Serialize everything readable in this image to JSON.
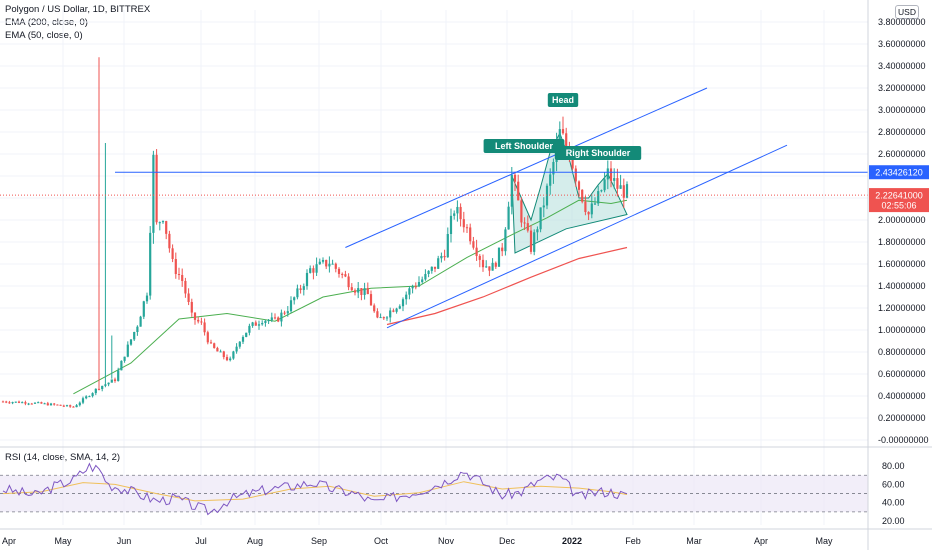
{
  "header": {
    "symbol_line": "Polygon / US Dollar, 1D, BITTREX",
    "ema200_line": "EMA (200, close, 0)",
    "ema50_line": "EMA (50, close, 0)",
    "currency": "USD"
  },
  "rsi_legend": "RSI (14, close, SMA, 14, 2)",
  "colors": {
    "up": "#26a69a",
    "down": "#ef5350",
    "ema50": "#4caf50",
    "ema200": "#ef5350",
    "channel": "#2962ff",
    "resistance": "#2962ff",
    "pattern_fill": "#b2dfdb",
    "pattern_badge": "#138a78",
    "rsi": "#7e57c2",
    "rsi_ma": "#f0c05a",
    "rsi_band": "#ede7f6",
    "price_badge": "#ef5350",
    "resistance_badge": "#2962ff"
  },
  "chart_data": {
    "type": "candlestick",
    "title": "Polygon / US Dollar, 1D, BITTREX",
    "x_axis_labels": [
      "Apr",
      "May",
      "Jun",
      "Jul",
      "Aug",
      "Sep",
      "Oct",
      "Nov",
      "Dec",
      "2022",
      "Feb",
      "Mar",
      "Apr",
      "May"
    ],
    "y_axis_labels": [
      "3.80000000",
      "3.60000000",
      "3.40000000",
      "3.20000000",
      "3.00000000",
      "2.80000000",
      "2.60000000",
      "2.40000000",
      "2.20000000",
      "2.00000000",
      "1.80000000",
      "1.60000000",
      "1.40000000",
      "1.20000000",
      "1.00000000",
      "0.80000000",
      "0.60000000",
      "0.40000000",
      "0.20000000",
      "-0.00000000"
    ],
    "ylim": [
      0,
      3.8
    ],
    "last_price": "2.22641000",
    "countdown": "02:55:06",
    "resistance_level": "2.43426120",
    "resistance_value": 2.43426,
    "pattern_labels": [
      "Left Shoulder",
      "Head",
      "Right Shoulder"
    ],
    "price_path": [
      [
        0,
        0.35
      ],
      [
        8,
        0.34
      ],
      [
        16,
        0.32
      ],
      [
        22,
        0.3
      ],
      [
        30,
        0.48
      ],
      [
        35,
        0.55
      ],
      [
        38,
        0.78
      ],
      [
        42,
        1.05
      ],
      [
        45,
        1.35
      ],
      [
        47,
        2.55
      ],
      [
        48,
        1.95
      ],
      [
        50,
        2.05
      ],
      [
        53,
        1.6
      ],
      [
        56,
        1.45
      ],
      [
        59,
        1.12
      ],
      [
        62,
        1.05
      ],
      [
        65,
        0.85
      ],
      [
        68,
        0.78
      ],
      [
        71,
        0.72
      ],
      [
        74,
        0.92
      ],
      [
        77,
        1.02
      ],
      [
        81,
        1.1
      ],
      [
        85,
        1.08
      ],
      [
        89,
        1.2
      ],
      [
        93,
        1.38
      ],
      [
        96,
        1.55
      ],
      [
        99,
        1.58
      ],
      [
        102,
        1.62
      ],
      [
        106,
        1.5
      ],
      [
        110,
        1.38
      ],
      [
        114,
        1.32
      ],
      [
        117,
        1.08
      ],
      [
        120,
        1.15
      ],
      [
        124,
        1.25
      ],
      [
        128,
        1.4
      ],
      [
        132,
        1.48
      ],
      [
        135,
        1.58
      ],
      [
        138,
        1.72
      ],
      [
        141,
        2.1
      ],
      [
        144,
        1.98
      ],
      [
        147,
        1.8
      ],
      [
        150,
        1.6
      ],
      [
        153,
        1.57
      ],
      [
        156,
        1.75
      ],
      [
        159,
        2.4
      ],
      [
        162,
        2.03
      ],
      [
        165,
        1.75
      ],
      [
        168,
        2.05
      ],
      [
        171,
        2.38
      ],
      [
        174,
        2.79
      ],
      [
        177,
        2.62
      ],
      [
        180,
        2.3
      ],
      [
        183,
        2.05
      ],
      [
        186,
        2.2
      ],
      [
        189,
        2.42
      ],
      [
        192,
        2.3
      ],
      [
        195,
        2.25
      ]
    ],
    "ema50_path": [
      [
        22,
        0.42
      ],
      [
        40,
        0.7
      ],
      [
        55,
        1.1
      ],
      [
        70,
        1.15
      ],
      [
        85,
        1.08
      ],
      [
        100,
        1.3
      ],
      [
        115,
        1.38
      ],
      [
        130,
        1.4
      ],
      [
        145,
        1.66
      ],
      [
        160,
        1.88
      ],
      [
        170,
        2.02
      ],
      [
        180,
        2.18
      ],
      [
        190,
        2.15
      ],
      [
        195,
        2.18
      ]
    ],
    "ema200_path": [
      [
        120,
        1.05
      ],
      [
        135,
        1.15
      ],
      [
        150,
        1.3
      ],
      [
        165,
        1.48
      ],
      [
        180,
        1.65
      ],
      [
        195,
        1.75
      ]
    ],
    "head_shoulders_polygon": [
      [
        159,
        2.4
      ],
      [
        162,
        2.2
      ],
      [
        165,
        2.0
      ],
      [
        168,
        2.3
      ],
      [
        171,
        2.62
      ],
      [
        174,
        2.79
      ],
      [
        177,
        2.55
      ],
      [
        180,
        2.2
      ],
      [
        183,
        2.2
      ],
      [
        186,
        2.32
      ],
      [
        189,
        2.42
      ],
      [
        195,
        2.05
      ],
      [
        176,
        1.92
      ],
      [
        160,
        1.7
      ]
    ],
    "channel_upper": [
      [
        107,
        1.75
      ],
      [
        220,
        3.2
      ]
    ],
    "channel_lower": [
      [
        120,
        1.02
      ],
      [
        245,
        2.68
      ]
    ],
    "rsi_ylim": [
      20,
      90
    ],
    "rsi_axis_labels": [
      "80.00",
      "60.00",
      "40.00",
      "20.00"
    ],
    "rsi_bands": [
      70,
      50,
      30
    ],
    "rsi_last": "47.47",
    "rsi_path": [
      [
        0,
        55
      ],
      [
        10,
        48
      ],
      [
        16,
        58
      ],
      [
        22,
        65
      ],
      [
        27,
        80
      ],
      [
        30,
        77
      ],
      [
        33,
        60
      ],
      [
        38,
        55
      ],
      [
        42,
        50
      ],
      [
        48,
        42
      ],
      [
        54,
        45
      ],
      [
        60,
        36
      ],
      [
        65,
        30
      ],
      [
        70,
        42
      ],
      [
        75,
        48
      ],
      [
        82,
        54
      ],
      [
        90,
        58
      ],
      [
        97,
        62
      ],
      [
        103,
        55
      ],
      [
        110,
        50
      ],
      [
        116,
        40
      ],
      [
        122,
        46
      ],
      [
        130,
        53
      ],
      [
        138,
        63
      ],
      [
        144,
        75
      ],
      [
        150,
        62
      ],
      [
        156,
        48
      ],
      [
        162,
        52
      ],
      [
        168,
        65
      ],
      [
        174,
        68
      ],
      [
        180,
        46
      ],
      [
        186,
        52
      ],
      [
        190,
        52
      ],
      [
        195,
        47
      ]
    ],
    "rsi_ma_path": [
      [
        0,
        50
      ],
      [
        12,
        52
      ],
      [
        25,
        62
      ],
      [
        35,
        60
      ],
      [
        48,
        50
      ],
      [
        60,
        42
      ],
      [
        75,
        44
      ],
      [
        90,
        55
      ],
      [
        102,
        58
      ],
      [
        116,
        47
      ],
      [
        130,
        51
      ],
      [
        144,
        63
      ],
      [
        156,
        55
      ],
      [
        168,
        58
      ],
      [
        180,
        56
      ],
      [
        190,
        52
      ],
      [
        195,
        49
      ]
    ]
  }
}
